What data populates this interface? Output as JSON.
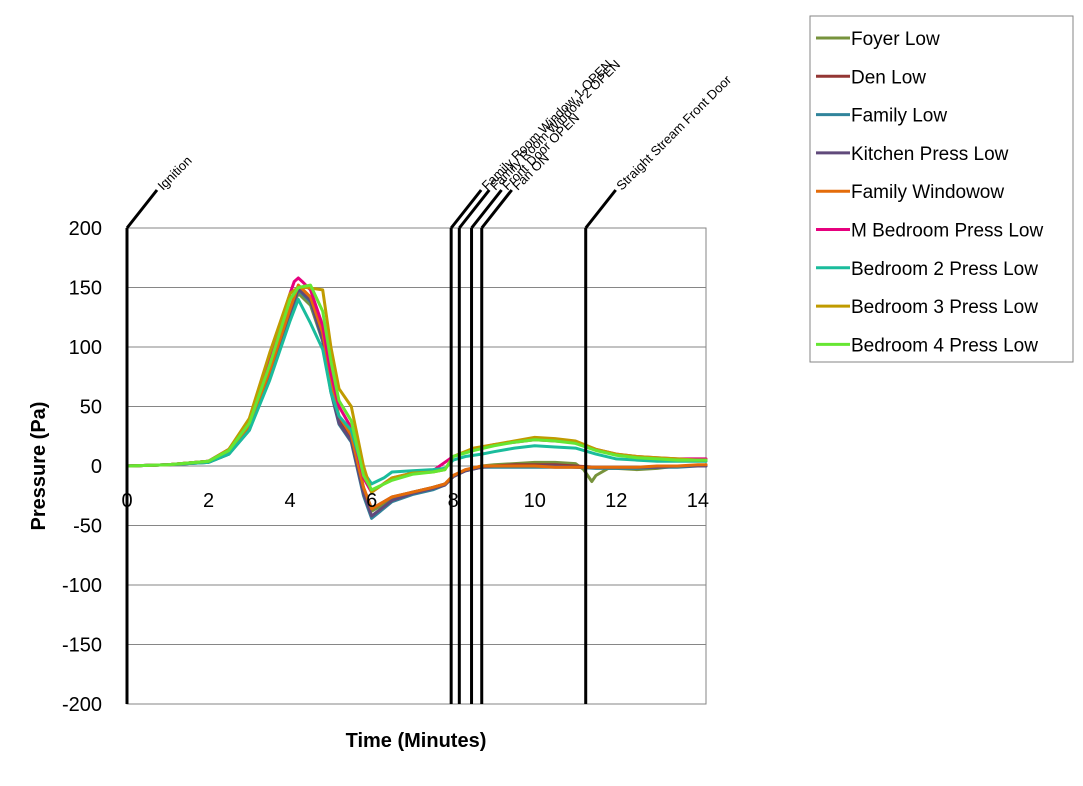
{
  "chart_data": {
    "type": "line",
    "xlabel": "Time (Minutes)",
    "ylabel": "Pressure (Pa)",
    "xlim": [
      0,
      14.2
    ],
    "ylim": [
      -200,
      200
    ],
    "xticks": [
      0,
      2,
      4,
      6,
      8,
      10,
      12,
      14
    ],
    "yticks": [
      200,
      150,
      100,
      50,
      0,
      -50,
      -100,
      -150,
      -200
    ],
    "grid": "horizontal",
    "legend_position": "right",
    "events": [
      {
        "label": "Ignition",
        "x": 0
      },
      {
        "label": "Family Room Window 1 OPEN",
        "x": 7.95
      },
      {
        "label": "Family Room Window 2 OPEN",
        "x": 8.15
      },
      {
        "label": "Front Door OPEN",
        "x": 8.45
      },
      {
        "label": "Fan ON",
        "x": 8.7
      },
      {
        "label": "Straight Stream Front Door",
        "x": 11.25
      }
    ],
    "series": [
      {
        "name": "Foyer Low",
        "color": "#77933c",
        "x": [
          0,
          1,
          2,
          2.5,
          3,
          3.5,
          4,
          4.2,
          4.5,
          4.8,
          5,
          5.2,
          5.5,
          5.8,
          6,
          6.5,
          7,
          7.5,
          7.8,
          8,
          8.3,
          8.7,
          9,
          9.5,
          10,
          10.5,
          11,
          11.2,
          11.4,
          11.5,
          11.8,
          12,
          12.5,
          13,
          13.5,
          14,
          14.2
        ],
        "y": [
          0,
          1,
          4,
          12,
          35,
          80,
          128,
          145,
          135,
          105,
          65,
          38,
          22,
          -20,
          -38,
          -28,
          -22,
          -18,
          -15,
          -8,
          -4,
          0,
          1,
          2,
          3,
          3,
          2,
          -3,
          -13,
          -8,
          -2,
          -2,
          -3,
          -2,
          0,
          0,
          1
        ]
      },
      {
        "name": "Den Low",
        "color": "#943634",
        "x": [
          0,
          1,
          2,
          2.5,
          3,
          3.5,
          4,
          4.2,
          4.5,
          4.8,
          5,
          5.2,
          5.5,
          5.8,
          6,
          6.5,
          7,
          7.5,
          7.8,
          8,
          8.3,
          8.7,
          9,
          9.5,
          10,
          10.5,
          11,
          11.5,
          12,
          12.5,
          13,
          13.5,
          14,
          14.2
        ],
        "y": [
          0,
          1,
          4,
          12,
          33,
          78,
          130,
          150,
          140,
          110,
          68,
          40,
          25,
          -18,
          -36,
          -26,
          -22,
          -18,
          -15,
          -8,
          -4,
          -1,
          0,
          1,
          1,
          1,
          0,
          -1,
          -1,
          -1,
          -1,
          0,
          0,
          1
        ]
      },
      {
        "name": "Family Low",
        "color": "#31849b",
        "x": [
          0,
          1,
          2,
          2.5,
          3,
          3.5,
          4,
          4.2,
          4.5,
          4.8,
          5,
          5.2,
          5.5,
          5.8,
          6,
          6.5,
          7,
          7.5,
          7.8,
          8,
          8.3,
          8.7,
          9,
          9.5,
          10,
          10.5,
          11,
          11.5,
          12,
          12.5,
          13,
          13.5,
          14,
          14.2
        ],
        "y": [
          0,
          1,
          3,
          10,
          30,
          75,
          128,
          148,
          138,
          105,
          62,
          35,
          20,
          -25,
          -44,
          -30,
          -24,
          -20,
          -16,
          -9,
          -4,
          -1,
          -1,
          -1,
          -1,
          -1,
          -1,
          -2,
          -2,
          -2,
          -1,
          -1,
          0,
          0
        ]
      },
      {
        "name": "Kitchen Press Low",
        "color": "#604a7b",
        "x": [
          0,
          1,
          2,
          2.5,
          3,
          3.5,
          4,
          4.2,
          4.5,
          4.8,
          5,
          5.2,
          5.5,
          5.8,
          6,
          6.5,
          7,
          7.5,
          7.8,
          8,
          8.3,
          8.7,
          9,
          9.5,
          10,
          10.5,
          11,
          11.5,
          12,
          12.5,
          13,
          13.5,
          14,
          14.2
        ],
        "y": [
          0,
          1,
          3,
          10,
          31,
          76,
          129,
          149,
          139,
          106,
          63,
          36,
          21,
          -23,
          -42,
          -29,
          -23,
          -19,
          -16,
          -9,
          -4,
          -1,
          0,
          0,
          0,
          0,
          -1,
          -1,
          -1,
          -1,
          -1,
          0,
          0,
          0
        ]
      },
      {
        "name": "Family Windowow",
        "color": "#e46c0a",
        "x": [
          0,
          1,
          2,
          2.5,
          3,
          3.5,
          4,
          4.2,
          4.5,
          4.8,
          5,
          5.2,
          5.5,
          5.8,
          6,
          6.5,
          7,
          7.5,
          7.8,
          8,
          8.3,
          8.7,
          9,
          9.5,
          10,
          10.5,
          11,
          11.5,
          12,
          12.5,
          13,
          13.5,
          14,
          14.2
        ],
        "y": [
          0,
          1,
          4,
          12,
          34,
          80,
          132,
          152,
          142,
          112,
          70,
          42,
          26,
          -18,
          -36,
          -26,
          -22,
          -18,
          -15,
          -8,
          -3,
          0,
          0,
          0,
          0,
          -1,
          -1,
          -1,
          -1,
          -1,
          0,
          0,
          1,
          1
        ]
      },
      {
        "name": "M Bedroom Press Low",
        "color": "#e6007e",
        "x": [
          0,
          1,
          2,
          2.5,
          3,
          3.5,
          4,
          4.1,
          4.2,
          4.3,
          4.5,
          4.8,
          5,
          5.2,
          5.5,
          5.8,
          6,
          6.5,
          7,
          7.5,
          8,
          8.5,
          9,
          9.5,
          10,
          10.5,
          11,
          11.5,
          12,
          12.5,
          13,
          13.5,
          14,
          14.2
        ],
        "y": [
          0,
          1,
          4,
          14,
          38,
          90,
          145,
          155,
          158,
          155,
          148,
          118,
          78,
          50,
          32,
          -10,
          -22,
          -10,
          -6,
          -4,
          8,
          14,
          18,
          20,
          22,
          21,
          20,
          14,
          10,
          8,
          7,
          6,
          6,
          6
        ]
      },
      {
        "name": "Bedroom 2 Press Low",
        "color": "#1abc9c",
        "x": [
          0,
          1,
          2,
          2.5,
          3,
          3.5,
          4,
          4.2,
          4.5,
          4.8,
          5,
          5.2,
          5.5,
          5.8,
          6,
          6.3,
          6.5,
          7,
          7.5,
          7.8,
          8,
          8.3,
          8.7,
          9,
          9.5,
          10,
          10.5,
          11,
          11.5,
          12,
          12.5,
          13,
          13.5,
          14,
          14.2
        ],
        "y": [
          0,
          1,
          3,
          10,
          30,
          72,
          122,
          140,
          120,
          98,
          62,
          42,
          30,
          -5,
          -15,
          -10,
          -5,
          -4,
          -3,
          -2,
          5,
          8,
          10,
          12,
          15,
          17,
          16,
          15,
          10,
          6,
          5,
          4,
          4,
          4,
          4
        ]
      },
      {
        "name": "Bedroom 3 Press Low",
        "color": "#c09b00",
        "x": [
          0,
          1,
          2,
          2.5,
          3,
          3.5,
          4,
          4.2,
          4.4,
          4.6,
          4.8,
          5,
          5.2,
          5.5,
          5.8,
          6,
          6.5,
          7,
          7.5,
          7.8,
          8,
          8.5,
          9,
          9.5,
          10,
          10.5,
          11,
          11.5,
          12,
          12.5,
          13,
          13.5,
          14,
          14.2
        ],
        "y": [
          0,
          1,
          4,
          14,
          40,
          95,
          145,
          150,
          150,
          149,
          148,
          100,
          65,
          50,
          0,
          -22,
          -10,
          -6,
          -5,
          -3,
          8,
          15,
          18,
          21,
          24,
          23,
          21,
          14,
          10,
          8,
          7,
          6,
          5,
          5
        ]
      },
      {
        "name": "Bedroom 4 Press Low",
        "color": "#66e633",
        "x": [
          0,
          1,
          2,
          2.5,
          3,
          3.5,
          4,
          4.2,
          4.5,
          4.8,
          5,
          5.2,
          5.5,
          5.8,
          6,
          6.5,
          7,
          7.5,
          7.8,
          8,
          8.5,
          9,
          9.5,
          10,
          10.5,
          11,
          11.5,
          12,
          12.5,
          13,
          13.5,
          14,
          14.2
        ],
        "y": [
          0,
          1,
          4,
          13,
          36,
          85,
          140,
          150,
          152,
          130,
          88,
          55,
          38,
          -8,
          -20,
          -12,
          -7,
          -5,
          -3,
          8,
          13,
          17,
          20,
          22,
          21,
          19,
          13,
          9,
          7,
          6,
          5,
          5,
          5
        ]
      }
    ]
  }
}
